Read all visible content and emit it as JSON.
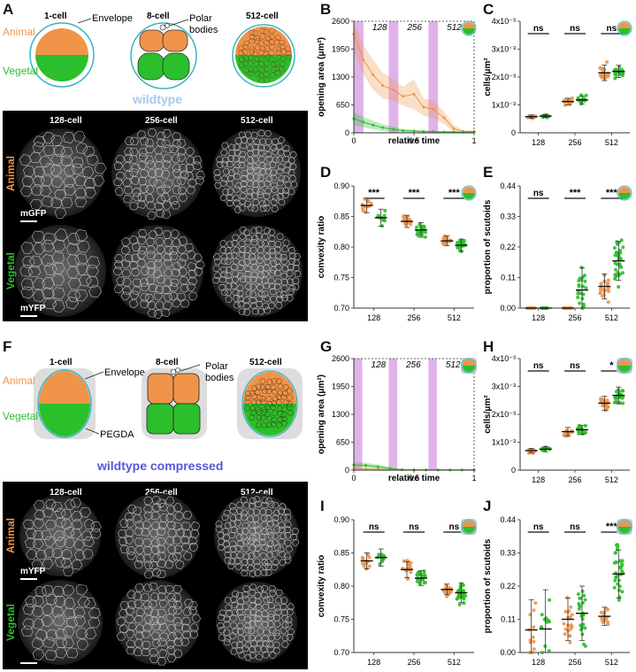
{
  "colors": {
    "animal": "#f0944a",
    "vegetal": "#2bbf2b",
    "envelope": "#3ab4c4",
    "wildtype_label": "#a8c8ee",
    "compressed_label": "#5a55d6",
    "window": "#d9a6e6",
    "axis": "#333333"
  },
  "panel_letters": [
    "A",
    "B",
    "C",
    "D",
    "E",
    "F",
    "G",
    "H",
    "I",
    "J"
  ],
  "schematic_top": {
    "stage_labels": [
      "1-cell",
      "8-cell",
      "512-cell"
    ],
    "envelope": "Envelope",
    "polar_bodies": "Polar\nbodies",
    "animal": "Animal",
    "vegetal": "Vegetal",
    "condition": "wildtype"
  },
  "schematic_bottom": {
    "stage_labels": [
      "1-cell",
      "8-cell",
      "512-cell"
    ],
    "envelope": "Envelope",
    "polar_bodies": "Polar\nbodies",
    "pegda": "PEGDA",
    "animal": "Animal",
    "vegetal": "Vegetal",
    "condition": "wildtype compressed"
  },
  "micrographs_top": {
    "columns": [
      "128-cell",
      "256-cell",
      "512-cell"
    ],
    "rows": [
      "Animal",
      "Vegetal"
    ],
    "markers": [
      "mGFP",
      "mYFP"
    ]
  },
  "micrographs_bottom": {
    "columns": [
      "128-cell",
      "256-cell",
      "512-cell"
    ],
    "rows": [
      "Animal",
      "Vegetal"
    ],
    "markers": [
      "mYFP",
      ""
    ]
  },
  "chart_data": [
    {
      "panel": "B",
      "type": "line",
      "ylabel": "opening area (μm²)",
      "xlabel": "relative time",
      "ylim": [
        0,
        2600
      ],
      "yticks": [
        0,
        650,
        1300,
        1950,
        2600
      ],
      "xlim": [
        0,
        1
      ],
      "xticks": [
        0,
        0.5,
        1
      ],
      "windows": [
        {
          "label": "128",
          "x": [
            0.0,
            0.08
          ]
        },
        {
          "label": "256",
          "x": [
            0.29,
            0.37
          ]
        },
        {
          "label": "512",
          "x": [
            0.62,
            0.7
          ]
        }
      ],
      "series": [
        {
          "color": "animal",
          "x": [
            0,
            0.08,
            0.16,
            0.24,
            0.33,
            0.41,
            0.5,
            0.58,
            0.66,
            0.75,
            0.83,
            0.91,
            1
          ],
          "y": [
            2300,
            1700,
            1350,
            1100,
            1000,
            850,
            900,
            600,
            550,
            350,
            100,
            30,
            30
          ],
          "band": [
            400,
            350,
            350,
            300,
            250,
            220,
            350,
            200,
            200,
            150,
            80,
            30,
            30
          ]
        },
        {
          "color": "vegetal",
          "x": [
            0,
            0.08,
            0.16,
            0.24,
            0.33,
            0.41,
            0.5,
            0.58,
            0.66,
            0.75,
            0.83,
            0.91,
            1
          ],
          "y": [
            330,
            250,
            180,
            120,
            80,
            50,
            40,
            30,
            25,
            20,
            20,
            15,
            15
          ],
          "band": [
            150,
            120,
            100,
            80,
            60,
            40,
            30,
            25,
            20,
            15,
            15,
            10,
            10
          ]
        }
      ]
    },
    {
      "panel": "C",
      "type": "scatter",
      "ylabel": "cells/μm²",
      "categories": [
        "128",
        "256",
        "512"
      ],
      "ylim": [
        0,
        0.004
      ],
      "yticks": [
        "0",
        "1x10⁻³",
        "2x10⁻³",
        "3x10⁻³",
        "4x10⁻³"
      ],
      "significance": [
        "ns",
        "ns",
        "ns"
      ],
      "groups": [
        {
          "cat": "128",
          "color": "animal",
          "mean": 0.00058,
          "sd": 6e-05,
          "n": 12
        },
        {
          "cat": "128",
          "color": "vegetal",
          "mean": 0.0006,
          "sd": 5e-05,
          "n": 12
        },
        {
          "cat": "256",
          "color": "animal",
          "mean": 0.00112,
          "sd": 0.00012,
          "n": 14
        },
        {
          "cat": "256",
          "color": "vegetal",
          "mean": 0.00118,
          "sd": 0.00014,
          "n": 16
        },
        {
          "cat": "512",
          "color": "animal",
          "mean": 0.00215,
          "sd": 0.00028,
          "n": 22
        },
        {
          "cat": "512",
          "color": "vegetal",
          "mean": 0.0022,
          "sd": 0.00022,
          "n": 22
        }
      ]
    },
    {
      "panel": "D",
      "type": "scatter",
      "ylabel": "convexity ratio",
      "categories": [
        "128",
        "256",
        "512"
      ],
      "ylim": [
        0.7,
        0.9
      ],
      "yticks": [
        "0.70",
        "0.75",
        "0.80",
        "0.85",
        "0.90"
      ],
      "significance": [
        "***",
        "***",
        "***"
      ],
      "groups": [
        {
          "cat": "128",
          "color": "animal",
          "mean": 0.868,
          "sd": 0.012,
          "n": 12
        },
        {
          "cat": "128",
          "color": "vegetal",
          "mean": 0.848,
          "sd": 0.014,
          "n": 12
        },
        {
          "cat": "256",
          "color": "animal",
          "mean": 0.842,
          "sd": 0.01,
          "n": 18
        },
        {
          "cat": "256",
          "color": "vegetal",
          "mean": 0.828,
          "sd": 0.012,
          "n": 22
        },
        {
          "cat": "512",
          "color": "animal",
          "mean": 0.81,
          "sd": 0.008,
          "n": 14
        },
        {
          "cat": "512",
          "color": "vegetal",
          "mean": 0.803,
          "sd": 0.01,
          "n": 18
        }
      ]
    },
    {
      "panel": "E",
      "type": "scatter",
      "ylabel": "proportion of scutoids",
      "categories": [
        "128",
        "256",
        "512"
      ],
      "ylim": [
        0,
        0.44
      ],
      "yticks": [
        "0.00",
        "0.11",
        "0.22",
        "0.33",
        "0.44"
      ],
      "significance": [
        "ns",
        "***",
        "***"
      ],
      "groups": [
        {
          "cat": "128",
          "color": "animal",
          "mean": 0.0,
          "sd": 0.0,
          "n": 12
        },
        {
          "cat": "128",
          "color": "vegetal",
          "mean": 0.0,
          "sd": 0.0,
          "n": 12
        },
        {
          "cat": "256",
          "color": "animal",
          "mean": 0.0,
          "sd": 0.0,
          "n": 18
        },
        {
          "cat": "256",
          "color": "vegetal",
          "mean": 0.065,
          "sd": 0.08,
          "n": 22
        },
        {
          "cat": "512",
          "color": "animal",
          "mean": 0.078,
          "sd": 0.045,
          "n": 20
        },
        {
          "cat": "512",
          "color": "vegetal",
          "mean": 0.17,
          "sd": 0.07,
          "n": 32
        }
      ]
    },
    {
      "panel": "G",
      "type": "line",
      "ylabel": "opening area (μm²)",
      "xlabel": "relative time",
      "ylim": [
        0,
        2600
      ],
      "yticks": [
        0,
        650,
        1300,
        1950,
        2600
      ],
      "xlim": [
        0,
        1
      ],
      "xticks": [
        0,
        0.5,
        1
      ],
      "windows": [
        {
          "label": "128",
          "x": [
            0.0,
            0.07
          ]
        },
        {
          "label": "256",
          "x": [
            0.29,
            0.36
          ]
        },
        {
          "label": "512",
          "x": [
            0.62,
            0.69
          ]
        }
      ],
      "series": [
        {
          "color": "animal",
          "x": [
            0,
            0.1,
            0.2,
            0.3,
            0.4,
            0.5,
            0.6,
            0.7,
            0.8,
            0.9,
            1
          ],
          "y": [
            30,
            25,
            20,
            15,
            12,
            10,
            8,
            6,
            5,
            5,
            5
          ],
          "band": [
            20,
            15,
            12,
            10,
            8,
            6,
            5,
            4,
            3,
            3,
            3
          ]
        },
        {
          "color": "vegetal",
          "x": [
            0,
            0.1,
            0.2,
            0.3,
            0.4,
            0.5,
            0.6,
            0.7,
            0.8,
            0.9,
            1
          ],
          "y": [
            120,
            110,
            80,
            40,
            10,
            5,
            5,
            5,
            5,
            5,
            5
          ],
          "band": [
            60,
            60,
            50,
            30,
            10,
            5,
            3,
            3,
            3,
            3,
            3
          ]
        }
      ]
    },
    {
      "panel": "H",
      "type": "scatter",
      "ylabel": "cells/μm²",
      "categories": [
        "128",
        "256",
        "512"
      ],
      "ylim": [
        0,
        0.004
      ],
      "yticks": [
        "0",
        "1x10⁻³",
        "2x10⁻³",
        "3x10⁻³",
        "4x10⁻³"
      ],
      "significance": [
        "ns",
        "ns",
        "*"
      ],
      "groups": [
        {
          "cat": "128",
          "color": "animal",
          "mean": 0.0007,
          "sd": 8e-05,
          "n": 12
        },
        {
          "cat": "128",
          "color": "vegetal",
          "mean": 0.00075,
          "sd": 9e-05,
          "n": 12
        },
        {
          "cat": "256",
          "color": "animal",
          "mean": 0.00138,
          "sd": 0.00015,
          "n": 16
        },
        {
          "cat": "256",
          "color": "vegetal",
          "mean": 0.00145,
          "sd": 0.00016,
          "n": 18
        },
        {
          "cat": "512",
          "color": "animal",
          "mean": 0.0024,
          "sd": 0.00025,
          "n": 22
        },
        {
          "cat": "512",
          "color": "vegetal",
          "mean": 0.00268,
          "sd": 0.0003,
          "n": 26
        }
      ]
    },
    {
      "panel": "I",
      "type": "scatter",
      "ylabel": "convexity ratio",
      "categories": [
        "128",
        "256",
        "512"
      ],
      "ylim": [
        0.7,
        0.9
      ],
      "yticks": [
        "0.70",
        "0.75",
        "0.80",
        "0.85",
        "0.90"
      ],
      "significance": [
        "ns",
        "ns",
        "ns"
      ],
      "groups": [
        {
          "cat": "128",
          "color": "animal",
          "mean": 0.838,
          "sd": 0.012,
          "n": 12
        },
        {
          "cat": "128",
          "color": "vegetal",
          "mean": 0.843,
          "sd": 0.013,
          "n": 12
        },
        {
          "cat": "256",
          "color": "animal",
          "mean": 0.825,
          "sd": 0.012,
          "n": 20
        },
        {
          "cat": "256",
          "color": "vegetal",
          "mean": 0.812,
          "sd": 0.011,
          "n": 22
        },
        {
          "cat": "512",
          "color": "animal",
          "mean": 0.795,
          "sd": 0.008,
          "n": 18
        },
        {
          "cat": "512",
          "color": "vegetal",
          "mean": 0.79,
          "sd": 0.015,
          "n": 30
        }
      ]
    },
    {
      "panel": "J",
      "type": "scatter",
      "ylabel": "proportion of scutoids",
      "categories": [
        "128",
        "256",
        "512"
      ],
      "ylim": [
        0,
        0.44
      ],
      "yticks": [
        "0.00",
        "0.11",
        "0.22",
        "0.33",
        "0.44"
      ],
      "significance": [
        "ns",
        "ns",
        "***"
      ],
      "groups": [
        {
          "cat": "128",
          "color": "animal",
          "mean": 0.075,
          "sd": 0.1,
          "n": 12
        },
        {
          "cat": "128",
          "color": "vegetal",
          "mean": 0.078,
          "sd": 0.13,
          "n": 12
        },
        {
          "cat": "256",
          "color": "animal",
          "mean": 0.11,
          "sd": 0.07,
          "n": 20
        },
        {
          "cat": "256",
          "color": "vegetal",
          "mean": 0.13,
          "sd": 0.09,
          "n": 24
        },
        {
          "cat": "512",
          "color": "animal",
          "mean": 0.12,
          "sd": 0.03,
          "n": 18
        },
        {
          "cat": "512",
          "color": "vegetal",
          "mean": 0.26,
          "sd": 0.08,
          "n": 32
        }
      ]
    }
  ]
}
